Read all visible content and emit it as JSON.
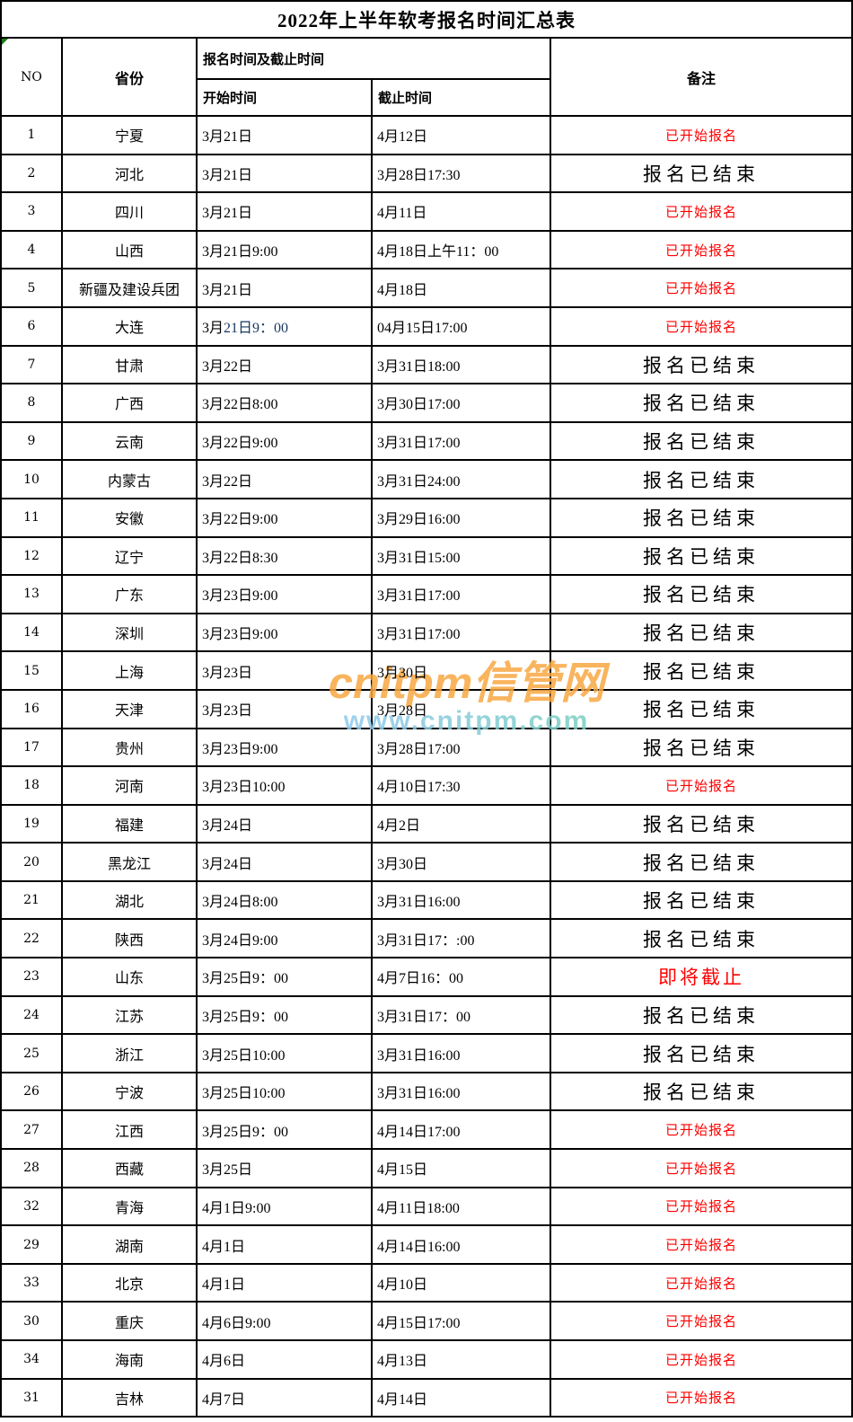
{
  "title": "2022年上半年软考报名时间汇总表",
  "columns": {
    "no": "NO",
    "province": "省份",
    "time_group": "报名时间及截止时间",
    "start": "开始时间",
    "end": "截止时间",
    "remark": "备注"
  },
  "status_colors": {
    "open": "#ff0000",
    "closed": "#000000",
    "soon": "#ff0000"
  },
  "special_text_color": "#17375E",
  "watermark": {
    "line1": "cnitpm信管网",
    "line2": "www.cnitpm.com",
    "brand_color": "#F9A843",
    "url_color_start": "#8FC9EE",
    "url_color_end": "#7BCEC0"
  },
  "rows": [
    {
      "no": "1",
      "province": "宁夏",
      "start": "3月21日",
      "end": "4月12日",
      "remark": "已开始报名",
      "status": "open"
    },
    {
      "no": "2",
      "province": "河北",
      "start": "3月21日",
      "end": "3月28日17:30",
      "remark": "报名已结束",
      "status": "closed"
    },
    {
      "no": "3",
      "province": "四川",
      "start": "3月21日",
      "end": "4月11日",
      "remark": "已开始报名",
      "status": "open"
    },
    {
      "no": "4",
      "province": "山西",
      "start": "3月21日9:00",
      "end": "4月18日上午11：00",
      "remark": "已开始报名",
      "status": "open"
    },
    {
      "no": "5",
      "province": "新疆及建设兵团",
      "start": "3月21日",
      "end": "4月18日",
      "remark": "已开始报名",
      "status": "open"
    },
    {
      "no": "6",
      "province": "大连",
      "start": "3月21日9：00",
      "start_parts": [
        {
          "text": "3月",
          "color": "#000000"
        },
        {
          "text": "21日9：00",
          "color": "#17375E"
        }
      ],
      "end": "04月15日17:00",
      "remark": "已开始报名",
      "status": "open"
    },
    {
      "no": "7",
      "province": "甘肃",
      "start": "3月22日",
      "end": "3月31日18:00",
      "remark": "报名已结束",
      "status": "closed"
    },
    {
      "no": "8",
      "province": "广西",
      "start": "3月22日8:00",
      "end": "3月30日17:00",
      "remark": "报名已结束",
      "status": "closed"
    },
    {
      "no": "9",
      "province": "云南",
      "start": "3月22日9:00",
      "end": "3月31日17:00",
      "remark": "报名已结束",
      "status": "closed"
    },
    {
      "no": "10",
      "province": "内蒙古",
      "start": "3月22日",
      "end": "3月31日24:00",
      "remark": "报名已结束",
      "status": "closed"
    },
    {
      "no": "11",
      "province": "安徽",
      "start": "3月22日9:00",
      "end": "3月29日16:00",
      "remark": "报名已结束",
      "status": "closed"
    },
    {
      "no": "12",
      "province": "辽宁",
      "start": "3月22日8:30",
      "end": "3月31日15:00",
      "remark": "报名已结束",
      "status": "closed"
    },
    {
      "no": "13",
      "province": "广东",
      "start": "3月23日9:00",
      "end": "3月31日17:00",
      "remark": "报名已结束",
      "status": "closed"
    },
    {
      "no": "14",
      "province": "深圳",
      "start": "3月23日9:00",
      "end": "3月31日17:00",
      "remark": "报名已结束",
      "status": "closed"
    },
    {
      "no": "15",
      "province": "上海",
      "start": "3月23日",
      "end": "3月30日",
      "remark": "报名已结束",
      "status": "closed"
    },
    {
      "no": "16",
      "province": "天津",
      "start": "3月23日",
      "end": "3月28日",
      "remark": "报名已结束",
      "status": "closed"
    },
    {
      "no": "17",
      "province": "贵州",
      "start": "3月23日9:00",
      "end": "3月28日17:00",
      "remark": "报名已结束",
      "status": "closed"
    },
    {
      "no": "18",
      "province": "河南",
      "start": "3月23日10:00",
      "end": "4月10日17:30",
      "remark": "已开始报名",
      "status": "open"
    },
    {
      "no": "19",
      "province": "福建",
      "start": "3月24日",
      "end": "4月2日",
      "remark": "报名已结束",
      "status": "closed"
    },
    {
      "no": "20",
      "province": "黑龙江",
      "start": "3月24日",
      "end": "3月30日",
      "remark": "报名已结束",
      "status": "closed"
    },
    {
      "no": "21",
      "province": "湖北",
      "start": "3月24日8:00",
      "end": "3月31日16:00",
      "remark": "报名已结束",
      "status": "closed"
    },
    {
      "no": "22",
      "province": "陕西",
      "start": "3月24日9:00",
      "end": "3月31日17：:00",
      "remark": "报名已结束",
      "status": "closed"
    },
    {
      "no": "23",
      "province": "山东",
      "start": "3月25日9：00",
      "end": "4月7日16：00",
      "remark": "即将截止",
      "status": "soon"
    },
    {
      "no": "24",
      "province": "江苏",
      "start": "3月25日9：00",
      "end": "3月31日17：00",
      "remark": "报名已结束",
      "status": "closed"
    },
    {
      "no": "25",
      "province": "浙江",
      "start": "3月25日10:00",
      "end": "3月31日16:00",
      "remark": "报名已结束",
      "status": "closed"
    },
    {
      "no": "26",
      "province": "宁波",
      "start": "3月25日10:00",
      "end": "3月31日16:00",
      "remark": "报名已结束",
      "status": "closed"
    },
    {
      "no": "27",
      "province": "江西",
      "start": "3月25日9：00",
      "end": "4月14日17:00",
      "remark": "已开始报名",
      "status": "open"
    },
    {
      "no": "28",
      "province": "西藏",
      "start": "3月25日",
      "end": "4月15日",
      "remark": "已开始报名",
      "status": "open"
    },
    {
      "no": "32",
      "province": "青海",
      "start": "4月1日9:00",
      "end": "4月11日18:00",
      "remark": "已开始报名",
      "status": "open"
    },
    {
      "no": "29",
      "province": "湖南",
      "start": "4月1日",
      "end": "4月14日16:00",
      "remark": "已开始报名",
      "status": "open"
    },
    {
      "no": "33",
      "province": "北京",
      "start": "4月1日",
      "end": "4月10日",
      "remark": "已开始报名",
      "status": "open"
    },
    {
      "no": "30",
      "province": "重庆",
      "start": "4月6日9:00",
      "end": "4月15日17:00",
      "remark": "已开始报名",
      "status": "open"
    },
    {
      "no": "34",
      "province": "海南",
      "start": "4月6日",
      "end": "4月13日",
      "remark": "已开始报名",
      "status": "open"
    },
    {
      "no": "31",
      "province": "吉林",
      "start": "4月7日",
      "end": "4月14日",
      "remark": "已开始报名",
      "status": "open"
    }
  ]
}
